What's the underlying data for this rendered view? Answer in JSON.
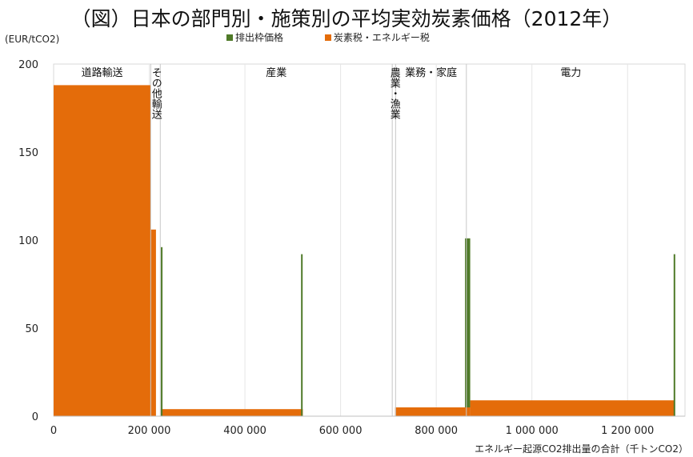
{
  "chart_data": {
    "type": "bar",
    "title": "（図）日本の部門別・施策別の平均実効炭素価格（2012年）",
    "ylabel": "(EUR/tCO2)",
    "xlabel": "エネルギー起源CO2排出量の合計（千トンCO2）",
    "xlim": [
      0,
      1300000
    ],
    "ylim": [
      0,
      200
    ],
    "x_ticks": [
      {
        "value": 0,
        "label": "0"
      },
      {
        "value": 200000,
        "label": "200 000"
      },
      {
        "value": 400000,
        "label": "400 000"
      },
      {
        "value": 600000,
        "label": "600 000"
      },
      {
        "value": 800000,
        "label": "800 000"
      },
      {
        "value": 1000000,
        "label": "1 000 000"
      },
      {
        "value": 1200000,
        "label": "1 200 000"
      }
    ],
    "y_ticks": [
      0,
      50,
      100,
      150,
      200
    ],
    "grid": "vertical",
    "legend_position": "top",
    "series": [
      {
        "name": "排出枠価格",
        "color": "#4f7a28"
      },
      {
        "name": "炭素税・エネルギー税",
        "color": "#e46c0a"
      }
    ],
    "sectors": [
      {
        "label": "道路輸送",
        "start": 0,
        "end": 203000,
        "vertical": false
      },
      {
        "label": "その他輸送",
        "start": 203000,
        "end": 223000,
        "vertical": true
      },
      {
        "label": "産業",
        "start": 223000,
        "end": 708000,
        "vertical": false
      },
      {
        "label": "農業・漁業",
        "start": 708000,
        "end": 715000,
        "vertical": true
      },
      {
        "label": "業務・家庭",
        "start": 715000,
        "end": 863000,
        "vertical": false
      },
      {
        "label": "電力",
        "start": 863000,
        "end": 1300000,
        "vertical": false
      }
    ],
    "blocks": [
      {
        "series": "炭素税・エネルギー税",
        "x0": 0,
        "x1": 203000,
        "y0": 0,
        "y1": 188
      },
      {
        "series": "炭素税・エネルギー税",
        "x0": 203000,
        "x1": 214000,
        "y0": 0,
        "y1": 106
      },
      {
        "series": "炭素税・エネルギー税",
        "x0": 224000,
        "x1": 521000,
        "y0": 0,
        "y1": 4
      },
      {
        "series": "炭素税・エネルギー税",
        "x0": 714000,
        "x1": 860000,
        "y0": 0,
        "y1": 5
      },
      {
        "series": "排出枠価格",
        "x0": 860000,
        "x1": 871000,
        "y0": 5,
        "y1": 101
      },
      {
        "series": "炭素税・エネルギー税",
        "x0": 860000,
        "x1": 871000,
        "y0": 0,
        "y1": 5
      },
      {
        "series": "炭素税・エネルギー税",
        "x0": 871000,
        "x1": 1297000,
        "y0": 0,
        "y1": 9
      }
    ],
    "spikes": [
      {
        "series": "排出枠価格",
        "x": 226000,
        "y": 96
      },
      {
        "series": "排出枠価格",
        "x": 519000,
        "y": 92
      },
      {
        "series": "排出枠価格",
        "x": 1298000,
        "y": 92
      }
    ]
  }
}
